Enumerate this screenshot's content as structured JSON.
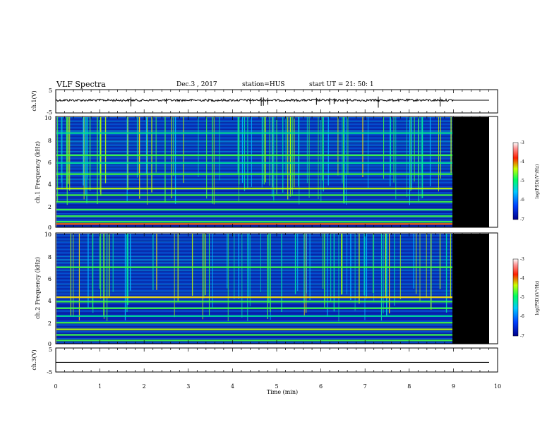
{
  "header": {
    "title": "VLF Spectra",
    "date": "Dec.3 , 2017",
    "station": "station=HUS",
    "start": "start UT = 21: 50: 1"
  },
  "colors": {
    "background_noise": "#0a1a9c",
    "spectrogram_ramp": [
      "#0000a0",
      "#0030d0",
      "#0080ff",
      "#00c8ff",
      "#00e8a0",
      "#40ff40",
      "#c0ff00",
      "#ffe000",
      "#ff6000",
      "#e00000"
    ],
    "no_data": "#000000",
    "waveform": "#000000"
  },
  "chart_data": [
    {
      "id": "ch1-waveform",
      "type": "line",
      "ylabel": "ch.1(V)",
      "ylim": [
        -5,
        5
      ],
      "y_ticks": [
        "5",
        "-5"
      ],
      "xlim": [
        0,
        10
      ],
      "data_end_min": 9.0,
      "baseline_V": 0,
      "spike_times_min": [
        1.7,
        2.5,
        4.4,
        4.65,
        4.7,
        4.8,
        5.9,
        6.2,
        6.3,
        6.6,
        7.3,
        8.7
      ]
    },
    {
      "id": "ch1-spectrogram",
      "type": "heatmap",
      "ylabel": "ch.1 Frequency (kHz)",
      "xlim": [
        0,
        10
      ],
      "ylim": [
        0,
        10
      ],
      "y_ticks": [
        "0",
        "2",
        "4",
        "6",
        "8",
        "10"
      ],
      "data_end_min": 9.0,
      "colorbar": {
        "label": "log(PSD)(V²/Hz)",
        "range": [
          -7,
          -3
        ],
        "ticks": [
          "-3",
          "-4",
          "-5",
          "-6",
          "-7"
        ]
      },
      "bands_kHz": [
        {
          "f": 0.3,
          "level": 0.9
        },
        {
          "f": 0.5,
          "level": 0.6
        },
        {
          "f": 1.0,
          "level": 0.5
        },
        {
          "f": 1.6,
          "level": 0.55
        },
        {
          "f": 2.3,
          "level": 0.6
        },
        {
          "f": 2.9,
          "level": 0.55
        },
        {
          "f": 3.5,
          "level": 0.65
        },
        {
          "f": 4.8,
          "level": 0.5
        },
        {
          "f": 5.8,
          "level": 0.45
        },
        {
          "f": 6.5,
          "level": 0.5
        },
        {
          "f": 8.5,
          "level": 0.45
        }
      ],
      "sferic_density": 0.18
    },
    {
      "id": "ch2-spectrogram",
      "type": "heatmap",
      "ylabel": "ch.2 Frequency (kHz)",
      "xlim": [
        0,
        10
      ],
      "ylim": [
        0,
        10
      ],
      "y_ticks": [
        "0",
        "2",
        "4",
        "6",
        "8",
        "10"
      ],
      "data_end_min": 9.0,
      "colorbar": {
        "label": "log(PSD)(V²/Hz)",
        "range": [
          -7,
          -3
        ],
        "ticks": [
          "-3",
          "-4",
          "-5",
          "-6",
          "-7"
        ]
      },
      "bands_kHz": [
        {
          "f": 0.3,
          "level": 0.55
        },
        {
          "f": 0.8,
          "level": 0.6
        },
        {
          "f": 1.3,
          "level": 0.7
        },
        {
          "f": 1.9,
          "level": 0.6
        },
        {
          "f": 2.5,
          "level": 0.45
        },
        {
          "f": 3.2,
          "level": 0.5
        },
        {
          "f": 3.8,
          "level": 0.55
        },
        {
          "f": 4.2,
          "level": 0.75
        },
        {
          "f": 6.9,
          "level": 0.55
        }
      ],
      "sferic_density": 0.15
    },
    {
      "id": "ch3-waveform",
      "type": "line",
      "ylabel": "ch.3(V)",
      "ylim": [
        -5,
        5
      ],
      "y_ticks": [
        "5",
        "-5"
      ],
      "xlim": [
        0,
        10
      ],
      "baseline_V": -1,
      "flat": true
    }
  ],
  "x_axis": {
    "label": "Time (min)",
    "ticks": [
      "0",
      "1",
      "2",
      "3",
      "4",
      "5",
      "6",
      "7",
      "8",
      "9",
      "10"
    ]
  }
}
